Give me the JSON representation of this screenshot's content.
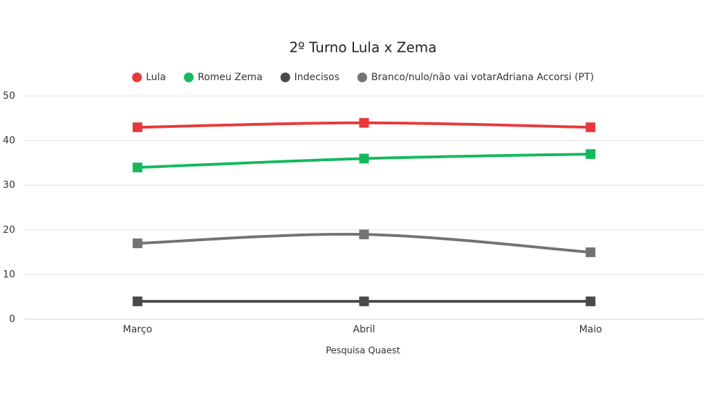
{
  "chart_data": {
    "type": "line",
    "title": "2º Turno Lula x Zema",
    "x_label": "Pesquisa Quaest",
    "categories": [
      "Março",
      "Abril",
      "Maio"
    ],
    "series": [
      {
        "name": "Lula",
        "color": "#e8393a",
        "values": [
          43,
          44,
          43
        ]
      },
      {
        "name": "Romeu Zema",
        "color": "#13b95c",
        "values": [
          34,
          36,
          37
        ]
      },
      {
        "name": "Indecisos",
        "color": "#4a4a4a",
        "values": [
          4,
          4,
          4
        ]
      },
      {
        "name": "Branco/nulo/não vai votarAdriana Accorsi (PT)",
        "color": "#737373",
        "values": [
          17,
          19,
          15
        ]
      }
    ],
    "ylim": [
      0,
      50
    ],
    "yticks": [
      0,
      10,
      20,
      30,
      40,
      50
    ],
    "grid": true,
    "legend": "top"
  }
}
